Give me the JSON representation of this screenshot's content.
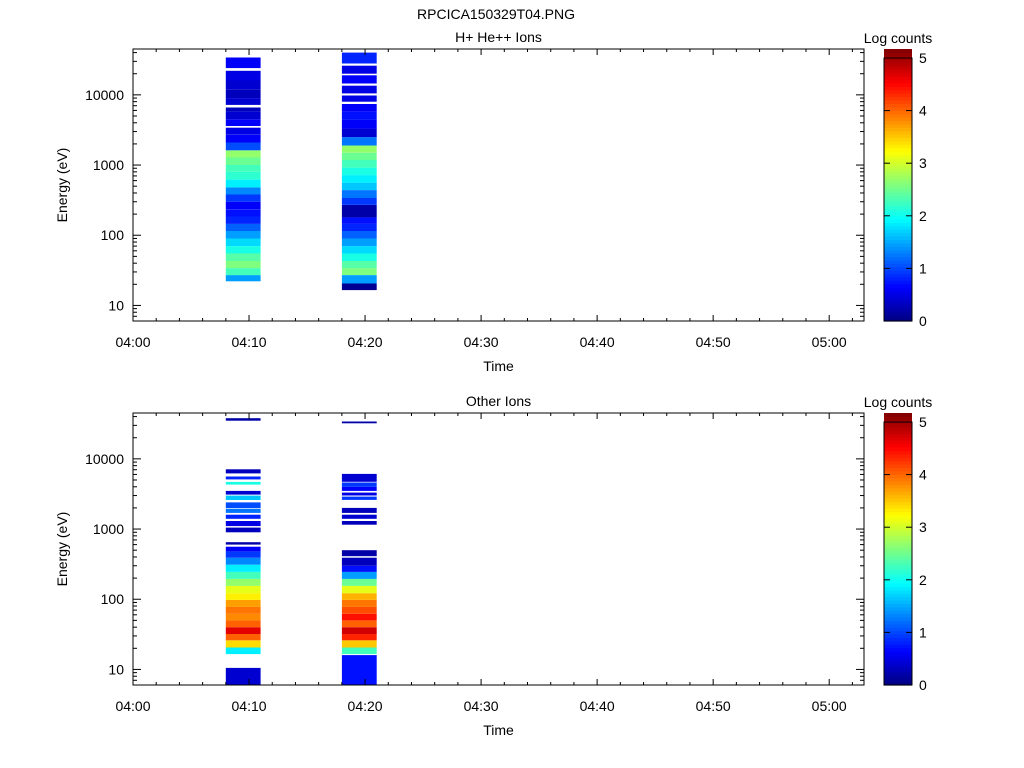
{
  "page_title": "RPCICA150329T04.PNG",
  "colormap": [
    "#00007f",
    "#0000ff",
    "#007fff",
    "#00ffff",
    "#7fff7f",
    "#ffff00",
    "#ff7f00",
    "#ff0000",
    "#7f0000"
  ],
  "chart_data": [
    {
      "type": "heatmap",
      "title": "H+ He++ Ions",
      "xlabel": "Time",
      "ylabel": "Energy (eV)",
      "y_scale": "log",
      "ylim": [
        6,
        45000
      ],
      "xlim": [
        "04:00",
        "05:03"
      ],
      "x_ticks": [
        "04:00",
        "04:10",
        "04:20",
        "04:30",
        "04:40",
        "04:50",
        "05:00"
      ],
      "y_ticks": [
        "10",
        "100",
        "1000",
        "10000"
      ],
      "grid": false,
      "colorbar": {
        "label": "Log counts",
        "range": [
          0,
          5
        ],
        "ticks": [
          "0",
          "1",
          "2",
          "3",
          "4",
          "5"
        ]
      },
      "columns": [
        {
          "time_start": "04:08",
          "time_end": "04:11",
          "bins": [
            [
              22,
              27,
              1.4
            ],
            [
              27,
              34,
              2.2
            ],
            [
              34,
              43,
              2.5
            ],
            [
              43,
              55,
              2.3
            ],
            [
              55,
              70,
              2.0
            ],
            [
              70,
              90,
              1.7
            ],
            [
              90,
              115,
              1.4
            ],
            [
              115,
              145,
              1.1
            ],
            [
              145,
              185,
              0.8
            ],
            [
              185,
              235,
              0.7
            ],
            [
              235,
              300,
              0.6
            ],
            [
              300,
              380,
              0.9
            ],
            [
              380,
              480,
              1.3
            ],
            [
              480,
              620,
              1.8
            ],
            [
              620,
              800,
              2.1
            ],
            [
              800,
              1000,
              2.2
            ],
            [
              1000,
              1280,
              2.4
            ],
            [
              1280,
              1620,
              2.6
            ],
            [
              1620,
              2100,
              1.0
            ],
            [
              2100,
              2700,
              0.6
            ],
            [
              2700,
              3400,
              0.5
            ],
            [
              3600,
              4500,
              0.6
            ],
            [
              4500,
              5800,
              0.4
            ],
            [
              5800,
              6600,
              0.3
            ],
            [
              7200,
              9000,
              0.4
            ],
            [
              9000,
              12000,
              0.3
            ],
            [
              12000,
              16000,
              0.4
            ],
            [
              16000,
              22000,
              0.5
            ],
            [
              24000,
              34000,
              0.6
            ]
          ]
        },
        {
          "time_start": "04:18",
          "time_end": "04:21",
          "bins": [
            [
              16.5,
              20.5,
              0.1
            ],
            [
              20.5,
              27,
              1.4
            ],
            [
              27,
              34,
              2.5
            ],
            [
              34,
              43,
              2.3
            ],
            [
              43,
              55,
              2.0
            ],
            [
              55,
              70,
              1.7
            ],
            [
              70,
              90,
              1.4
            ],
            [
              90,
              115,
              1.1
            ],
            [
              115,
              145,
              0.8
            ],
            [
              145,
              180,
              0.7
            ],
            [
              180,
              270,
              0.2
            ],
            [
              270,
              340,
              0.9
            ],
            [
              340,
              440,
              1.2
            ],
            [
              440,
              560,
              1.6
            ],
            [
              560,
              720,
              1.8
            ],
            [
              720,
              920,
              2.0
            ],
            [
              920,
              1180,
              2.2
            ],
            [
              1180,
              1500,
              2.4
            ],
            [
              1500,
              1900,
              2.6
            ],
            [
              1900,
              2500,
              1.2
            ],
            [
              2500,
              3300,
              0.4
            ],
            [
              3300,
              4400,
              0.6
            ],
            [
              4400,
              5800,
              0.7
            ],
            [
              5800,
              7400,
              0.6
            ],
            [
              8000,
              9800,
              0.5
            ],
            [
              10500,
              13500,
              0.5
            ],
            [
              14500,
              19000,
              0.6
            ],
            [
              20000,
              26000,
              0.5
            ],
            [
              28000,
              40000,
              0.8
            ]
          ]
        }
      ]
    },
    {
      "type": "heatmap",
      "title": "Other Ions",
      "xlabel": "Time",
      "ylabel": "Energy (eV)",
      "y_scale": "log",
      "ylim": [
        6,
        45000
      ],
      "xlim": [
        "04:00",
        "05:03"
      ],
      "x_ticks": [
        "04:00",
        "04:10",
        "04:20",
        "04:30",
        "04:40",
        "04:50",
        "05:00"
      ],
      "y_ticks": [
        "10",
        "100",
        "1000",
        "10000"
      ],
      "grid": false,
      "colorbar": {
        "label": "Log counts",
        "range": [
          0,
          5
        ],
        "ticks": [
          "0",
          "1",
          "2",
          "3",
          "4",
          "5"
        ]
      },
      "columns": [
        {
          "time_start": "04:08",
          "time_end": "04:11",
          "bins": [
            [
              6,
              10.5,
              0.4
            ],
            [
              16.5,
              20.5,
              1.8
            ],
            [
              20.5,
              26,
              3.3
            ],
            [
              26,
              32,
              3.9
            ],
            [
              32,
              40,
              4.5
            ],
            [
              40,
              50,
              3.9
            ],
            [
              50,
              62,
              3.7
            ],
            [
              62,
              78,
              3.8
            ],
            [
              78,
              98,
              3.6
            ],
            [
              98,
              122,
              3.2
            ],
            [
              122,
              155,
              3.0
            ],
            [
              155,
              195,
              2.6
            ],
            [
              195,
              245,
              2.2
            ],
            [
              245,
              310,
              1.8
            ],
            [
              310,
              390,
              1.3
            ],
            [
              390,
              480,
              0.9
            ],
            [
              480,
              560,
              0.6
            ],
            [
              600,
              650,
              0.2
            ],
            [
              900,
              1050,
              0.3
            ],
            [
              1100,
              1300,
              0.5
            ],
            [
              1400,
              1600,
              0.8
            ],
            [
              1700,
              1950,
              1.2
            ],
            [
              2000,
              2400,
              1.0
            ],
            [
              2600,
              3000,
              1.6
            ],
            [
              3100,
              3500,
              0.4
            ],
            [
              4300,
              4700,
              2.0
            ],
            [
              5100,
              5600,
              0.8
            ],
            [
              6200,
              7100,
              0.3
            ],
            [
              35000,
              38000,
              0.2
            ]
          ]
        },
        {
          "time_start": "04:18",
          "time_end": "04:21",
          "bins": [
            [
              6,
              16,
              0.7
            ],
            [
              16.5,
              20.5,
              2.2
            ],
            [
              20.5,
              26,
              3.4
            ],
            [
              26,
              32,
              4.2
            ],
            [
              32,
              40,
              4.6
            ],
            [
              40,
              50,
              3.9
            ],
            [
              50,
              62,
              4.3
            ],
            [
              62,
              78,
              4.0
            ],
            [
              78,
              98,
              3.8
            ],
            [
              98,
              122,
              3.5
            ],
            [
              122,
              155,
              3.0
            ],
            [
              155,
              195,
              2.4
            ],
            [
              195,
              245,
              1.4
            ],
            [
              245,
              300,
              0.7
            ],
            [
              300,
              390,
              0.3
            ],
            [
              410,
              500,
              0.2
            ],
            [
              1150,
              1300,
              0.3
            ],
            [
              1400,
              1600,
              0.4
            ],
            [
              1700,
              2000,
              0.3
            ],
            [
              2600,
              2900,
              0.9
            ],
            [
              3000,
              3300,
              0.5
            ],
            [
              3500,
              4000,
              0.6
            ],
            [
              4000,
              4600,
              0.9
            ],
            [
              4700,
              6100,
              0.4
            ],
            [
              32000,
              34000,
              0.2
            ]
          ]
        }
      ]
    }
  ]
}
